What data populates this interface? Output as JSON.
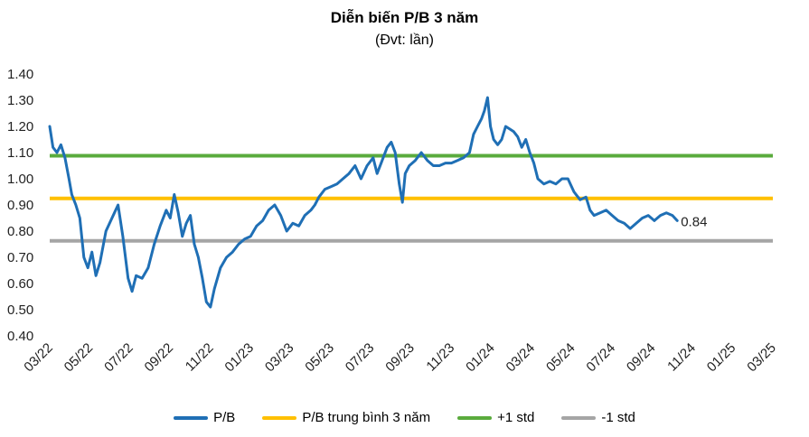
{
  "chart_data": {
    "type": "line",
    "title": "Diễn biến P/B 3 năm",
    "subtitle": "(Đvt: lần)",
    "xlabel": "",
    "ylabel": "",
    "ylim": [
      0.4,
      1.4
    ],
    "y_ticks": [
      "1.40",
      "1.30",
      "1.20",
      "1.10",
      "1.00",
      "0.90",
      "0.80",
      "0.70",
      "0.60",
      "0.50",
      "0.40"
    ],
    "x_ticks": [
      "03/22",
      "05/22",
      "07/22",
      "09/22",
      "11/22",
      "01/23",
      "03/23",
      "05/23",
      "07/23",
      "09/23",
      "11/23",
      "01/24",
      "03/24",
      "05/24",
      "07/24",
      "09/24",
      "11/24",
      "01/25",
      "03/25"
    ],
    "grid": false,
    "legend_position": "bottom",
    "last_value_label": "0.84",
    "series": [
      {
        "name": "P/B",
        "color": "#1f6fb5",
        "points": [
          [
            0,
            1.2
          ],
          [
            0.08,
            1.12
          ],
          [
            0.18,
            1.1
          ],
          [
            0.28,
            1.13
          ],
          [
            0.38,
            1.08
          ],
          [
            0.48,
            1.0
          ],
          [
            0.55,
            0.94
          ],
          [
            0.65,
            0.9
          ],
          [
            0.75,
            0.85
          ],
          [
            0.85,
            0.7
          ],
          [
            0.95,
            0.66
          ],
          [
            1.05,
            0.72
          ],
          [
            1.15,
            0.63
          ],
          [
            1.25,
            0.68
          ],
          [
            1.4,
            0.8
          ],
          [
            1.55,
            0.85
          ],
          [
            1.7,
            0.9
          ],
          [
            1.82,
            0.78
          ],
          [
            1.95,
            0.62
          ],
          [
            2.05,
            0.57
          ],
          [
            2.15,
            0.63
          ],
          [
            2.3,
            0.62
          ],
          [
            2.45,
            0.66
          ],
          [
            2.6,
            0.75
          ],
          [
            2.75,
            0.82
          ],
          [
            2.9,
            0.88
          ],
          [
            3.0,
            0.85
          ],
          [
            3.1,
            0.94
          ],
          [
            3.2,
            0.87
          ],
          [
            3.3,
            0.78
          ],
          [
            3.4,
            0.83
          ],
          [
            3.5,
            0.86
          ],
          [
            3.6,
            0.75
          ],
          [
            3.7,
            0.7
          ],
          [
            3.8,
            0.62
          ],
          [
            3.9,
            0.53
          ],
          [
            4.0,
            0.51
          ],
          [
            4.1,
            0.58
          ],
          [
            4.25,
            0.66
          ],
          [
            4.4,
            0.7
          ],
          [
            4.55,
            0.72
          ],
          [
            4.7,
            0.75
          ],
          [
            4.85,
            0.77
          ],
          [
            5.0,
            0.78
          ],
          [
            5.15,
            0.82
          ],
          [
            5.3,
            0.84
          ],
          [
            5.45,
            0.88
          ],
          [
            5.6,
            0.9
          ],
          [
            5.75,
            0.86
          ],
          [
            5.9,
            0.8
          ],
          [
            6.05,
            0.83
          ],
          [
            6.2,
            0.82
          ],
          [
            6.35,
            0.86
          ],
          [
            6.5,
            0.88
          ],
          [
            6.6,
            0.9
          ],
          [
            6.7,
            0.93
          ],
          [
            6.85,
            0.96
          ],
          [
            7.0,
            0.97
          ],
          [
            7.15,
            0.98
          ],
          [
            7.3,
            1.0
          ],
          [
            7.45,
            1.02
          ],
          [
            7.6,
            1.05
          ],
          [
            7.75,
            1.0
          ],
          [
            7.9,
            1.05
          ],
          [
            8.05,
            1.08
          ],
          [
            8.15,
            1.02
          ],
          [
            8.25,
            1.06
          ],
          [
            8.4,
            1.12
          ],
          [
            8.5,
            1.14
          ],
          [
            8.6,
            1.1
          ],
          [
            8.7,
            0.98
          ],
          [
            8.78,
            0.91
          ],
          [
            8.85,
            1.02
          ],
          [
            8.95,
            1.05
          ],
          [
            9.1,
            1.07
          ],
          [
            9.25,
            1.1
          ],
          [
            9.4,
            1.07
          ],
          [
            9.55,
            1.05
          ],
          [
            9.7,
            1.05
          ],
          [
            9.85,
            1.06
          ],
          [
            10.0,
            1.06
          ],
          [
            10.15,
            1.07
          ],
          [
            10.3,
            1.08
          ],
          [
            10.45,
            1.1
          ],
          [
            10.55,
            1.17
          ],
          [
            10.65,
            1.2
          ],
          [
            10.75,
            1.23
          ],
          [
            10.82,
            1.26
          ],
          [
            10.9,
            1.31
          ],
          [
            10.97,
            1.2
          ],
          [
            11.05,
            1.15
          ],
          [
            11.15,
            1.13
          ],
          [
            11.25,
            1.15
          ],
          [
            11.35,
            1.2
          ],
          [
            11.45,
            1.19
          ],
          [
            11.55,
            1.18
          ],
          [
            11.65,
            1.16
          ],
          [
            11.75,
            1.12
          ],
          [
            11.85,
            1.15
          ],
          [
            11.95,
            1.1
          ],
          [
            12.05,
            1.06
          ],
          [
            12.15,
            1.0
          ],
          [
            12.3,
            0.98
          ],
          [
            12.45,
            0.99
          ],
          [
            12.6,
            0.98
          ],
          [
            12.75,
            1.0
          ],
          [
            12.9,
            1.0
          ],
          [
            13.05,
            0.95
          ],
          [
            13.2,
            0.92
          ],
          [
            13.35,
            0.93
          ],
          [
            13.45,
            0.88
          ],
          [
            13.55,
            0.86
          ],
          [
            13.7,
            0.87
          ],
          [
            13.85,
            0.88
          ],
          [
            14.0,
            0.86
          ],
          [
            14.15,
            0.84
          ],
          [
            14.3,
            0.83
          ],
          [
            14.45,
            0.81
          ],
          [
            14.6,
            0.83
          ],
          [
            14.75,
            0.85
          ],
          [
            14.9,
            0.86
          ],
          [
            15.05,
            0.84
          ],
          [
            15.2,
            0.86
          ],
          [
            15.35,
            0.87
          ],
          [
            15.5,
            0.86
          ],
          [
            15.62,
            0.84
          ]
        ]
      },
      {
        "name": "P/B trung bình 3 năm",
        "color": "#ffc000",
        "value": 0.925
      },
      {
        "name": "+1 std",
        "color": "#5aab3d",
        "value": 1.088
      },
      {
        "name": "-1 std",
        "color": "#a5a5a5",
        "value": 0.763
      }
    ]
  }
}
